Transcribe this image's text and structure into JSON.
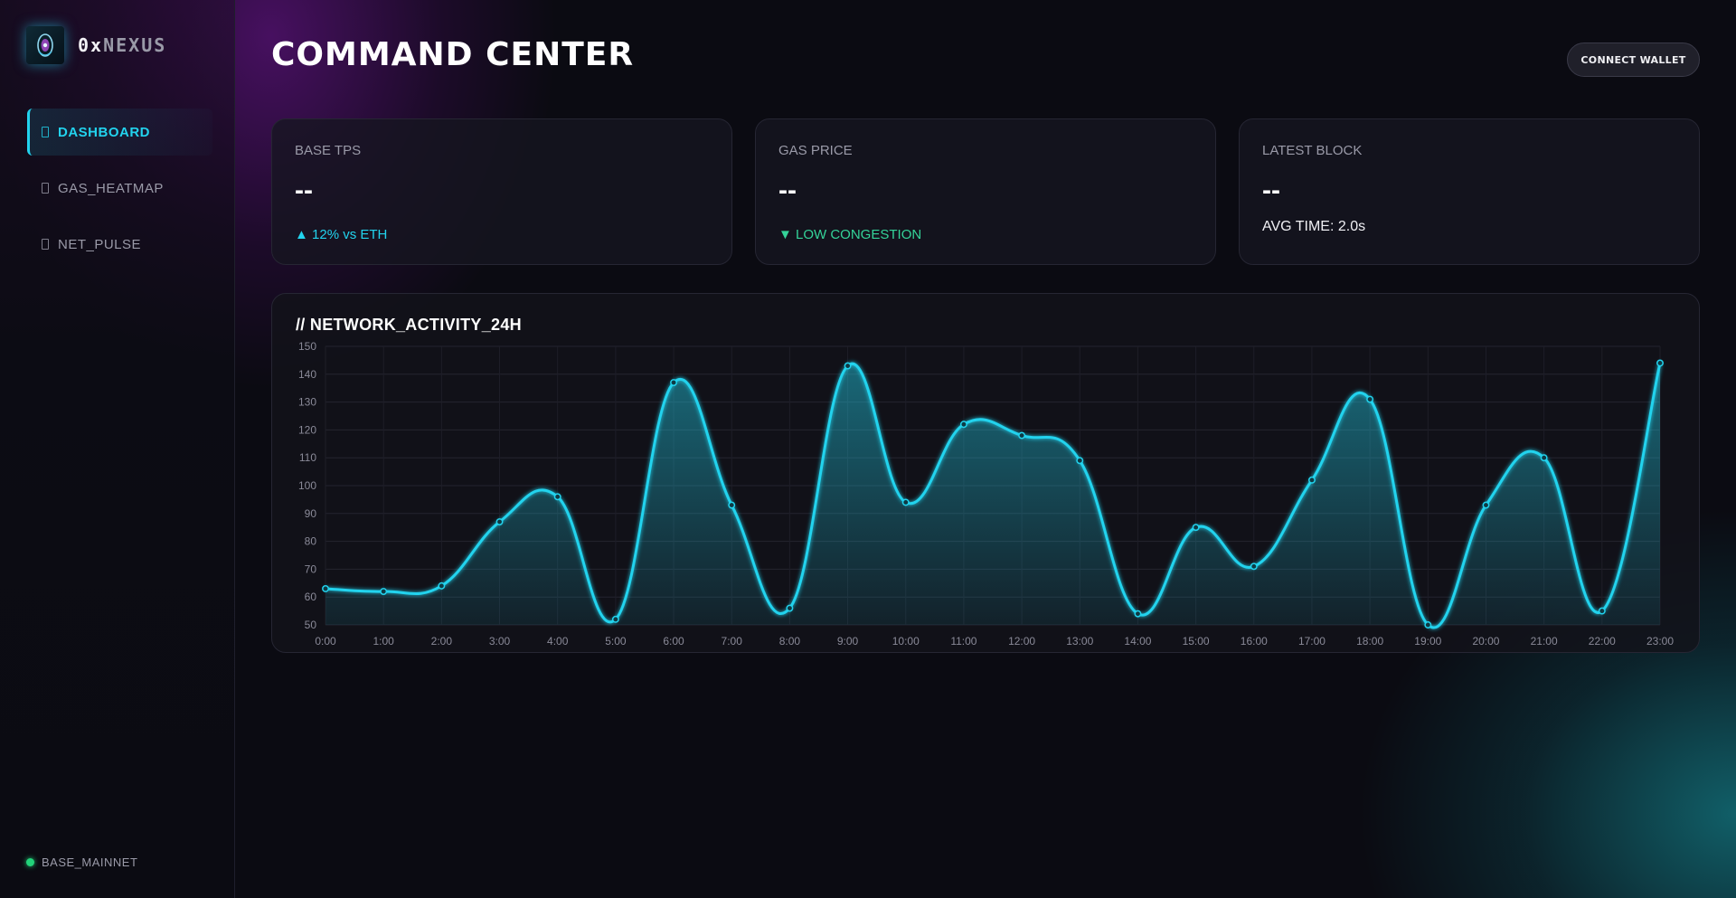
{
  "brand": {
    "name_part1": "0x",
    "name_part2": "NEXUS"
  },
  "sidebar": {
    "items": [
      {
        "label": "DASHBOARD",
        "active": true
      },
      {
        "label": "GAS_HEATMAP",
        "active": false
      },
      {
        "label": "NET_PULSE",
        "active": false
      }
    ],
    "network_label": "BASE_MAINNET"
  },
  "header": {
    "title": "COMMAND CENTER",
    "connect_label": "CONNECT WALLET"
  },
  "stats": [
    {
      "label": "BASE TPS",
      "value": "--",
      "sub": "▲ 12% vs ETH"
    },
    {
      "label": "GAS PRICE",
      "value": "--",
      "sub": "▼ LOW CONGESTION"
    },
    {
      "label": "LATEST BLOCK",
      "value": "--",
      "sub": "AVG TIME: 2.0s"
    }
  ],
  "colors": {
    "accent": "#22d3ee",
    "positive": "#34d399",
    "status_dot": "#22d37a",
    "glow_purple": "#7814a0"
  },
  "icons": {
    "logo": "orb-logo-icon",
    "nav": "nav-item-icon",
    "status": "status-dot-icon"
  },
  "chart_panel": {
    "title": "// NETWORK_ACTIVITY_24H"
  },
  "chart_data": {
    "type": "area",
    "title": "",
    "xlabel": "",
    "ylabel": "",
    "x": [
      "0:00",
      "1:00",
      "2:00",
      "3:00",
      "4:00",
      "5:00",
      "6:00",
      "7:00",
      "8:00",
      "9:00",
      "10:00",
      "11:00",
      "12:00",
      "13:00",
      "14:00",
      "15:00",
      "16:00",
      "17:00",
      "18:00",
      "19:00",
      "20:00",
      "21:00",
      "22:00",
      "23:00"
    ],
    "series": [
      {
        "values": [
          63,
          62,
          64,
          87,
          96,
          52,
          137,
          93,
          56,
          143,
          94,
          122,
          118,
          109,
          54,
          85,
          71,
          102,
          131,
          50,
          93,
          110,
          55,
          144
        ]
      }
    ],
    "ylim": [
      50,
      150
    ],
    "yticks": [
      50,
      60,
      70,
      80,
      90,
      100,
      110,
      120,
      130,
      140,
      150
    ],
    "grid": true,
    "legend": "none"
  }
}
